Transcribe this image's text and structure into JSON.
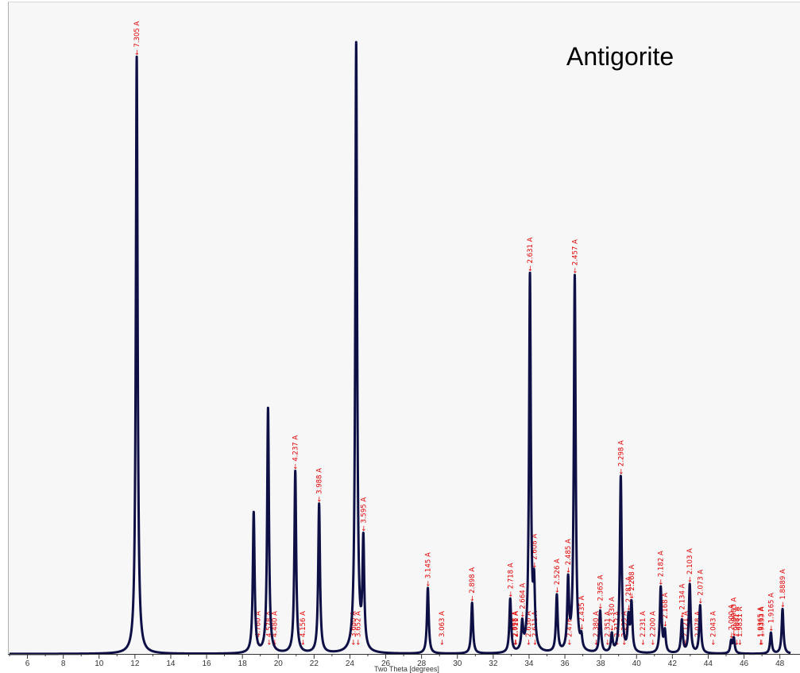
{
  "chart_data": {
    "type": "line",
    "title": "Antigorite",
    "xlabel": "Two Theta [degrees]",
    "ylabel": "",
    "xlim": [
      5.0,
      48.5
    ],
    "ylim": [
      0,
      100
    ],
    "x_ticks": [
      6,
      8,
      10,
      12,
      14,
      16,
      18,
      20,
      22,
      24,
      26,
      28,
      30,
      32,
      34,
      36,
      38,
      40,
      42,
      44,
      46,
      48
    ],
    "grid": false,
    "peak_width_deg": 0.06,
    "colors": {
      "pattern": "#0d0f45",
      "labels": "#e00000",
      "plot_background": "#f7f7f8"
    },
    "peaks": [
      {
        "x": 12.1,
        "y": 100,
        "label": "7.305 A"
      },
      {
        "x": 18.63,
        "y": 23.5
      },
      {
        "x": 18.85,
        "label": "4.760 A",
        "label_only": true
      },
      {
        "x": 19.43,
        "y": 41
      },
      {
        "x": 19.48,
        "label": "4.578 A",
        "label_only": true
      },
      {
        "x": 19.8,
        "label": "4.480 A",
        "label_only": true
      },
      {
        "x": 20.95,
        "y": 30.5,
        "label": "4.237 A"
      },
      {
        "x": 21.36,
        "label": "4.156 A",
        "label_only": true
      },
      {
        "x": 22.28,
        "y": 25,
        "label": "3.988 A"
      },
      {
        "x": 24.17,
        "label": "3.680 A",
        "label_only": true
      },
      {
        "x": 24.35,
        "y": 102
      },
      {
        "x": 24.45,
        "label": "3.652 A",
        "label_only": true
      },
      {
        "x": 24.75,
        "y": 18,
        "label": "3.595 A"
      },
      {
        "x": 28.35,
        "y": 11,
        "label": "3.145 A"
      },
      {
        "x": 29.12,
        "label": "3.063 A",
        "label_only": true
      },
      {
        "x": 30.82,
        "y": 8.5,
        "label": "2.898 A"
      },
      {
        "x": 32.95,
        "y": 9,
        "label": "2.718 A"
      },
      {
        "x": 33.25,
        "label": "2.711 A",
        "label_only": true
      },
      {
        "x": 33.2,
        "label": "2.698 A",
        "label_only": true
      },
      {
        "x": 33.62,
        "y": 4.5,
        "label": "2.664 A"
      },
      {
        "x": 33.95,
        "label": "2.636 A",
        "label_only": true
      },
      {
        "x": 34.05,
        "y": 63,
        "label": "2.631 A"
      },
      {
        "x": 34.28,
        "y": 10,
        "label": "2.608 A"
      },
      {
        "x": 34.32,
        "label": "2.611 A",
        "label_only": true
      },
      {
        "x": 35.55,
        "y": 9.5,
        "label": "2.526 A"
      },
      {
        "x": 36.18,
        "y": 11.5,
        "label": "2.485 A"
      },
      {
        "x": 36.24,
        "label": "2.476 A",
        "label_only": true
      },
      {
        "x": 36.55,
        "y": 63,
        "label": "2.457 A"
      },
      {
        "x": 36.92,
        "y": 2,
        "label": "2.435 A"
      },
      {
        "x": 37.72,
        "label": "2.380 A",
        "label_only": true
      },
      {
        "x": 37.97,
        "y": 7,
        "label": "2.365 A"
      },
      {
        "x": 38.38,
        "label": "2.351 A",
        "label_only": true
      },
      {
        "x": 38.62,
        "y": 3,
        "label": "2.330 A"
      },
      {
        "x": 38.9,
        "label": "2.312 A",
        "label_only": true
      },
      {
        "x": 39.12,
        "y": 29.5,
        "label": "2.298 A"
      },
      {
        "x": 39.3,
        "label": "2.295 A",
        "label_only": true
      },
      {
        "x": 39.55,
        "y": 5.5,
        "label": "2.281 A"
      },
      {
        "x": 39.72,
        "y": 8,
        "label": "2.268 A"
      },
      {
        "x": 40.34,
        "label": "2.231 A",
        "label_only": true
      },
      {
        "x": 40.9,
        "label": "2.200 A",
        "label_only": true
      },
      {
        "x": 41.35,
        "y": 11,
        "label": "2.182 A"
      },
      {
        "x": 41.58,
        "y": 3.5,
        "label": "2.168 A"
      },
      {
        "x": 42.53,
        "y": 5.5,
        "label": "2.134 A"
      },
      {
        "x": 42.72,
        "label": "2.121 A",
        "label_only": true
      },
      {
        "x": 42.97,
        "y": 11.5,
        "label": "2.103 A"
      },
      {
        "x": 43.55,
        "y": 8,
        "label": "2.073 A"
      },
      {
        "x": 43.4,
        "label": "2.078 A",
        "label_only": true
      },
      {
        "x": 44.26,
        "label": "2.043 A",
        "label_only": true
      },
      {
        "x": 45.28,
        "y": 2,
        "label": "2.000 A"
      },
      {
        "x": 45.43,
        "y": 2.5,
        "label": "1.9983 A"
      },
      {
        "x": 45.58,
        "label": "1.9881 A",
        "label_only": true
      },
      {
        "x": 45.75,
        "label": "1.9831 A",
        "label_only": true
      },
      {
        "x": 46.9,
        "label": "1.9365 A",
        "label_only": true
      },
      {
        "x": 46.98,
        "label": "1.9333 A",
        "label_only": true
      },
      {
        "x": 47.5,
        "y": 3.5,
        "label": "1.9165 A"
      },
      {
        "x": 48.15,
        "y": 7.5,
        "label": "1.8889 A"
      }
    ]
  }
}
